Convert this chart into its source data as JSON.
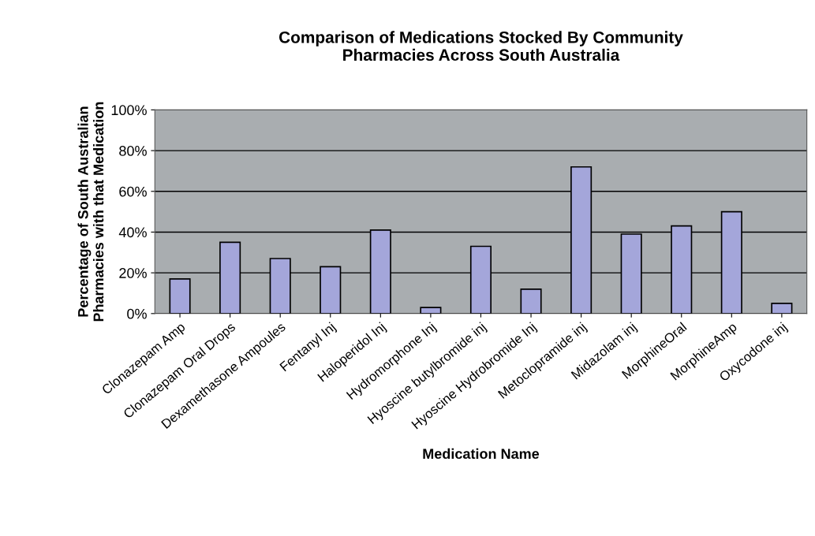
{
  "chart_data": {
    "type": "bar",
    "title": "Comparison of Medications Stocked By Community\nPharmacies Across South Australia",
    "xlabel": "Medication Name",
    "ylabel": "Percentage of South Australian\nPharmacies with that Medication",
    "categories": [
      "Clonazepam Amp",
      "Clonazepam Oral Drops",
      "Dexamethasone Ampoules",
      "Fentanyl Inj",
      "Haloperidol Inj",
      "Hydromorphone Inj",
      "Hyoscine butylbromide inj",
      "Hyoscine Hydrobromide Inj",
      "Metoclopramide inj",
      "Midazolam inj",
      "MorphineOral",
      "MorphineAmp",
      "Oxycodone inj"
    ],
    "values": [
      17,
      35,
      27,
      23,
      41,
      3,
      33,
      12,
      72,
      39,
      43,
      50,
      5
    ],
    "color": "#a4a6da",
    "ylim": [
      0,
      100
    ],
    "yticks": [
      {
        "value": 0,
        "label": "0%"
      },
      {
        "value": 20,
        "label": "20%"
      },
      {
        "value": 40,
        "label": "40%"
      },
      {
        "value": 60,
        "label": "60%"
      },
      {
        "value": 80,
        "label": "80%"
      },
      {
        "value": 100,
        "label": "100%"
      }
    ],
    "grid": "y",
    "legend": false
  }
}
